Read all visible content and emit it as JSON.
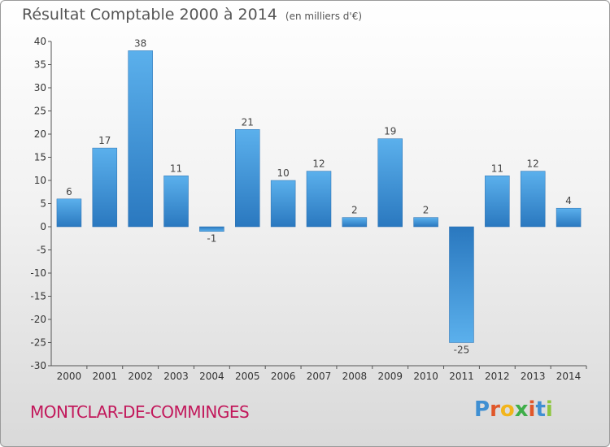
{
  "chart_data": {
    "type": "bar",
    "title": "Résultat Comptable 2000 à 2014",
    "subtitle": "(en milliers d'€)",
    "categories": [
      "2000",
      "2001",
      "2002",
      "2003",
      "2004",
      "2005",
      "2006",
      "2007",
      "2008",
      "2009",
      "2010",
      "2011",
      "2012",
      "2013",
      "2014"
    ],
    "values": [
      6,
      17,
      38,
      11,
      -1,
      21,
      10,
      12,
      2,
      19,
      2,
      -25,
      11,
      12,
      4
    ],
    "ylim": [
      -30,
      40
    ],
    "yticks": [
      40,
      35,
      30,
      25,
      20,
      15,
      10,
      5,
      0,
      -5,
      -10,
      -15,
      -20,
      -25,
      -30
    ],
    "ytick_labels": [
      "40",
      "35",
      "30",
      "25",
      "20",
      "15",
      "10",
      "5",
      "0",
      "-5",
      "-10",
      "-15",
      "-20",
      "-25",
      "-30"
    ],
    "grid": false,
    "bar_color": "#3d93d8",
    "xlabel": "",
    "ylabel": ""
  },
  "footer": {
    "town": "MONTCLAR-DE-COMMINGES",
    "town_color": "#c2185b",
    "logo_letters": [
      "P",
      "r",
      "o",
      "x",
      "i",
      "t",
      "i"
    ],
    "logo_colors": [
      "#3f8fd2",
      "#e0572a",
      "#f2b51c",
      "#3fae49",
      "#e0572a",
      "#3f8fd2",
      "#8dc63f"
    ]
  }
}
